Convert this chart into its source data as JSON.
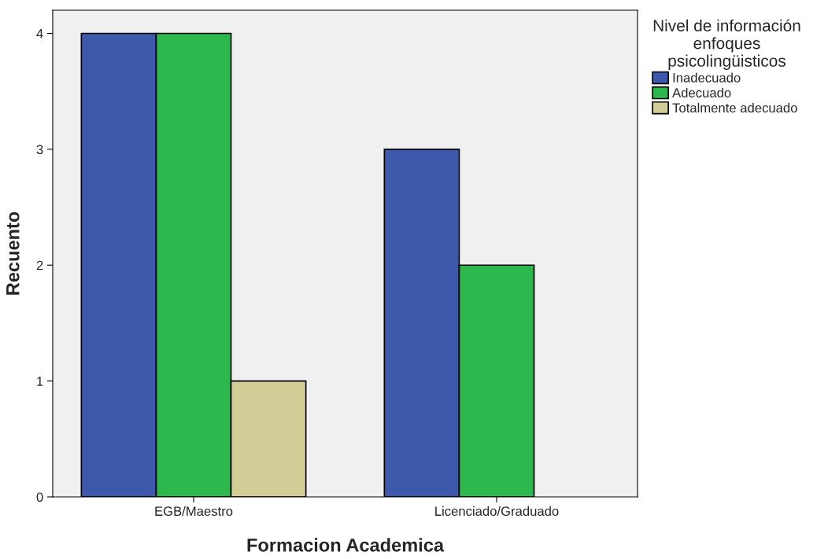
{
  "chart_data": {
    "type": "bar",
    "xlabel": "Formacion Academica",
    "ylabel": "Recuento",
    "legend_title": "Nivel de información\nenfoques\npsicolingüisticos",
    "categories": [
      "EGB/Maestro",
      "Licenciado/Graduado"
    ],
    "series": [
      {
        "name": "Inadecuado",
        "color": "#3e58ac",
        "values": [
          4,
          3
        ]
      },
      {
        "name": "Adecuado",
        "color": "#2db84d",
        "values": [
          4,
          2
        ]
      },
      {
        "name": "Totalmente adecuado",
        "color": "#d3ce97",
        "values": [
          1,
          null
        ]
      }
    ],
    "ylim": [
      0,
      4.2
    ],
    "yticks": [
      0,
      1,
      2,
      3,
      4
    ],
    "grid": false,
    "legend": "right"
  }
}
